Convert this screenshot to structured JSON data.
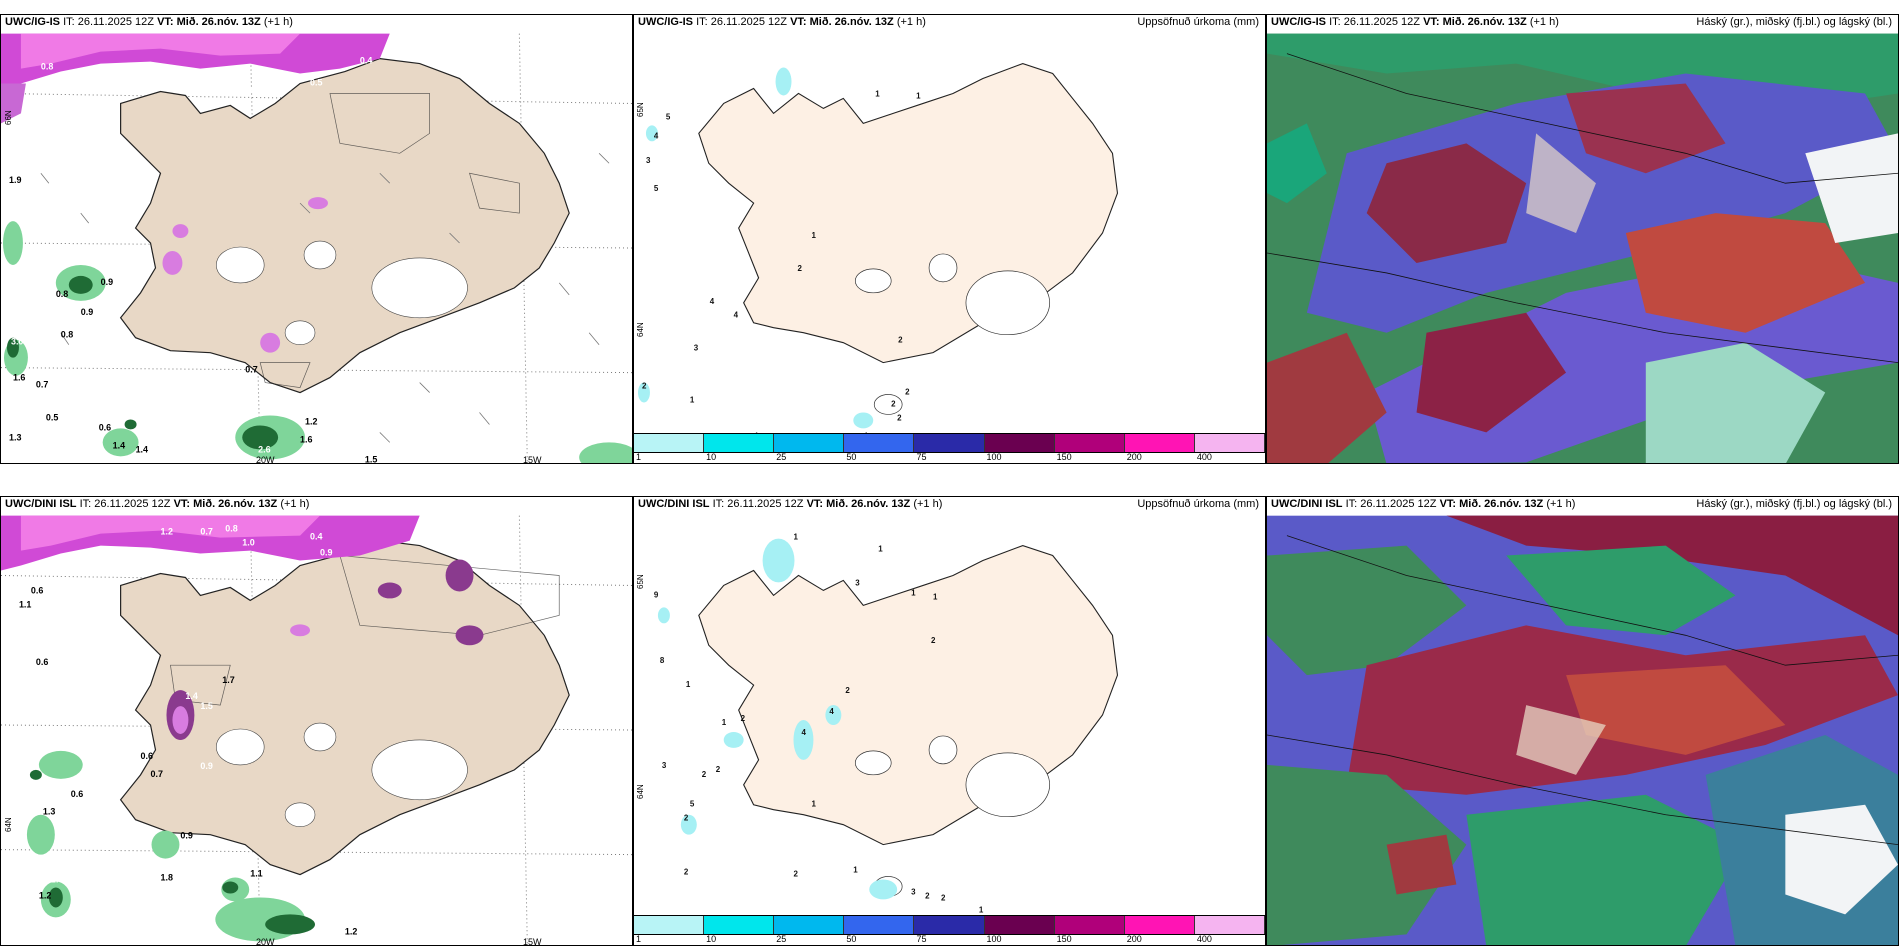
{
  "panels": {
    "top_left": {
      "model": "UWC/IG-IS",
      "it_label": "IT:",
      "it": "26.11.2025 12Z",
      "vt_label": "VT:",
      "vt": "Mið. 26.nóv. 13Z",
      "lead": "(+1 h)"
    },
    "top_mid": {
      "model": "UWC/IG-IS",
      "it_label": "IT:",
      "it": "26.11.2025 12Z",
      "vt_label": "VT:",
      "vt": "Mið. 26.nóv. 13Z",
      "lead": "(+1 h)",
      "right_title": "Uppsöfnuð úrkoma (mm)"
    },
    "top_right": {
      "model": "UWC/IG-IS",
      "it_label": "IT:",
      "it": "26.11.2025 12Z",
      "vt_label": "VT:",
      "vt": "Mið. 26.nóv. 13Z",
      "lead": "(+1 h)",
      "right_title": "Háský (gr.), miðský (fj.bl.) og lágský (bl.)"
    },
    "bot_left": {
      "model": "UWC/DINI ISL",
      "it_label": "IT:",
      "it": "26.11.2025 12Z",
      "vt_label": "VT:",
      "vt": "Mið. 26.nóv. 13Z",
      "lead": "(+1 h)"
    },
    "bot_mid": {
      "model": "UWC/DINI ISL",
      "it_label": "IT:",
      "it": "26.11.2025 12Z",
      "vt_label": "VT:",
      "vt": "Mið. 26.nóv. 13Z",
      "lead": "(+1 h)",
      "right_title": "Uppsöfnuð úrkoma (mm)"
    },
    "bot_right": {
      "model": "UWC/DINI ISL",
      "it_label": "IT:",
      "it": "26.11.2025 12Z",
      "vt_label": "VT:",
      "vt": "Mið. 26.nóv. 13Z",
      "lead": "(+1 h)",
      "right_title": "Háský (gr.), miðský (fj.bl.) og lágský (bl.)"
    }
  },
  "axes": {
    "lon_20w": "20W",
    "lon_15w": "15W",
    "lat_66n": "66N",
    "lat_65n": "65N",
    "lat_64n": "64N"
  },
  "colorbar": {
    "ticks": [
      "1",
      "10",
      "25",
      "50",
      "75",
      "100",
      "150",
      "200",
      "400"
    ],
    "colors": [
      "#b8f4f6",
      "#00e6ec",
      "#00b8ee",
      "#3366ee",
      "#2a2aa8",
      "#6a0050",
      "#b0007a",
      "#ff14b4",
      "#f5b4f0"
    ]
  },
  "top_left_values": [
    "0.8",
    "0.5",
    "0.4",
    "1.7",
    "0.8",
    "0.5",
    "0.7",
    "0.8",
    "0.9",
    "0.8",
    "0.5",
    "0.9",
    "1.3",
    "0.6",
    "1.6",
    "1.4",
    "0.7",
    "0.8",
    "1.2",
    "2.6",
    "1.5",
    "1.6",
    "1.4",
    "3.0",
    "1.9"
  ],
  "bot_left_values": [
    "1.2",
    "0.7",
    "0.8",
    "1.0",
    "0.4",
    "0.9",
    "0.6",
    "1.1",
    "0.6",
    "1.7",
    "1.5",
    "1.4",
    "0.9",
    "0.7",
    "0.6",
    "0.6",
    "1.3",
    "1.1",
    "1.8",
    "2.4",
    "1.2",
    "1.2",
    "1.4",
    "0.9"
  ],
  "top_mid_values": [
    "1",
    "1",
    "5",
    "4",
    "3",
    "5",
    "1",
    "2",
    "4",
    "4",
    "3",
    "2",
    "2",
    "1",
    "2",
    "2",
    "2",
    "3",
    "4",
    "4"
  ],
  "bot_mid_values": [
    "1",
    "1",
    "3",
    "1",
    "1",
    "9",
    "2",
    "8",
    "1",
    "2",
    "4",
    "2",
    "1",
    "4",
    "3",
    "2",
    "2",
    "5",
    "2",
    "1",
    "2",
    "2",
    "1",
    "3",
    "2",
    "2",
    "1"
  ]
}
